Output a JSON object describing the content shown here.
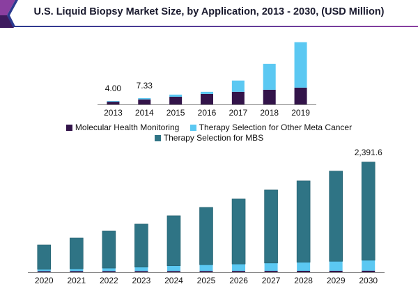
{
  "header": {
    "title": "U.S. Liquid Biopsy Market Size, by Application, 2013 - 2030, (USD Million)"
  },
  "colors": {
    "molecular": "#33144a",
    "other_meta": "#5bc8f2",
    "mbs": "#2f7485",
    "accent_left": "#8a3fa0",
    "accent_rule": "#2b3a8f"
  },
  "legend": {
    "items": [
      {
        "label": "Molecular Health Monitoring",
        "color": "#33144a"
      },
      {
        "label": "Therapy Selection for Other Meta Cancer",
        "color": "#5bc8f2"
      },
      {
        "label": "Therapy Selection for MBS",
        "color": "#2f7485"
      }
    ]
  },
  "chart_data": [
    {
      "type": "bar",
      "stacked": true,
      "title": "",
      "xlabel": "",
      "ylabel": "",
      "ylim": [
        0,
        80
      ],
      "grid": false,
      "categories": [
        "2013",
        "2014",
        "2015",
        "2016",
        "2017",
        "2018",
        "2019"
      ],
      "series": [
        {
          "name": "Molecular Health Monitoring",
          "values": [
            3.2,
            5.9,
            9.0,
            12.3,
            14.8,
            17.2,
            19.7
          ]
        },
        {
          "name": "Therapy Selection for Other Meta Cancer",
          "values": [
            0.8,
            1.43,
            2.5,
            2.5,
            13.2,
            30.3,
            53.3
          ]
        },
        {
          "name": "Therapy Selection for MBS",
          "values": [
            0,
            0,
            0,
            0,
            0,
            0,
            0
          ]
        }
      ],
      "data_labels": [
        {
          "category": "2013",
          "text": "4.00"
        },
        {
          "category": "2014",
          "text": "7.33"
        }
      ]
    },
    {
      "type": "bar",
      "stacked": true,
      "title": "",
      "xlabel": "",
      "ylabel": "",
      "ylim": [
        0,
        2600
      ],
      "grid": false,
      "categories": [
        "2020",
        "2021",
        "2022",
        "2023",
        "2024",
        "2025",
        "2026",
        "2027",
        "2028",
        "2029",
        "2030"
      ],
      "series": [
        {
          "name": "Molecular Health Monitoring",
          "values": [
            22,
            23,
            24,
            25,
            26,
            27,
            28,
            29,
            30,
            32,
            34
          ]
        },
        {
          "name": "Therapy Selection for Other Meta Cancer",
          "values": [
            40,
            50,
            65,
            85,
            115,
            135,
            150,
            170,
            185,
            205,
            225
          ]
        },
        {
          "name": "Therapy Selection for MBS",
          "values": [
            529,
            669,
            804,
            935,
            1085,
            1246,
            1412,
            1587,
            1768,
            1958,
            2132.6
          ]
        }
      ],
      "data_labels": [
        {
          "category": "2030",
          "text": "2,391.6"
        }
      ]
    }
  ]
}
